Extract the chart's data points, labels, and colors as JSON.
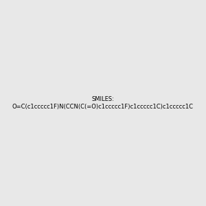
{
  "smiles": "O=C(c1ccccc1F)N(CCN(C(=O)c1ccccc1F)c1ccccc1C)c1ccccc1C",
  "image_size": 300,
  "background_color": "#e8e8e8",
  "bond_color": "#000000",
  "atom_colors": {
    "N": "#0000ff",
    "O": "#ff0000",
    "F": "#ff00ff"
  },
  "title": ""
}
